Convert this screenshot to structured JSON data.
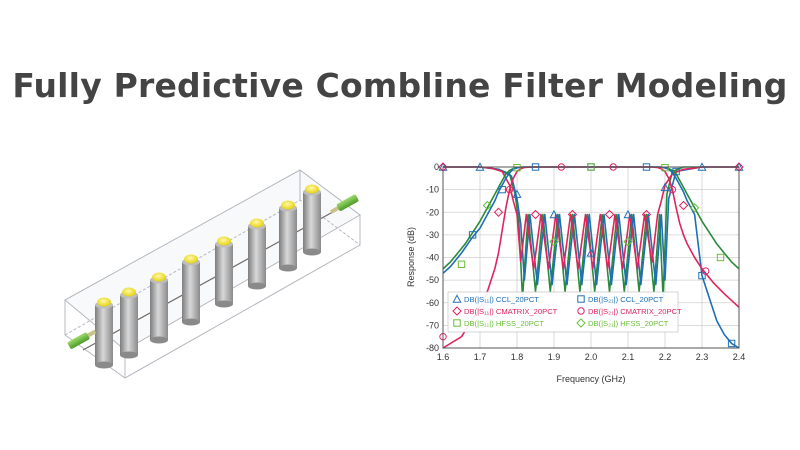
{
  "header": {
    "title": "Fully Predictive Combline Filter Modeling"
  },
  "illustration": {
    "icon": "combline-filter-3d-model-icon"
  },
  "chart_data": {
    "type": "line",
    "xlabel": "Frequency (GHz)",
    "ylabel": "Response (dB)",
    "xlim": [
      1.6,
      2.4
    ],
    "ylim": [
      -80,
      0
    ],
    "x_ticks": [
      1.6,
      1.7,
      1.8,
      1.9,
      2.0,
      2.1,
      2.2,
      2.3,
      2.4
    ],
    "x_tick_labels": [
      "1.6",
      "1.7",
      "1.8",
      "1.9",
      "2.0",
      "2.1",
      "2.2",
      "2.3",
      "2.4"
    ],
    "y_ticks": [
      0,
      -10,
      -20,
      -30,
      -40,
      -50,
      -60,
      -70,
      -80
    ],
    "y_tick_labels": [
      "0",
      "-10",
      "-20",
      "-30",
      "-40",
      "-50",
      "-60",
      "-70",
      "-80"
    ],
    "grid": true,
    "legend_position": "bottom-inside",
    "legend": [
      {
        "text": "DB(|S₁₁|) CCL_20PCT",
        "marker": "triangle",
        "color": "#1f6fb5"
      },
      {
        "text": "DB(|S₂₁|) CCL_20PCT",
        "marker": "square",
        "color": "#1f6fb5"
      },
      {
        "text": "DB(|S₁₁|) CMATRIX_20PCT",
        "marker": "diamond",
        "color": "#e0245e"
      },
      {
        "text": "DB(|S₂₁|) CMATRIX_20PCT",
        "marker": "circle",
        "color": "#e0245e"
      },
      {
        "text": "DB(|S₁₁|) HFSS_20PCT",
        "marker": "square",
        "color": "#6abf3a"
      },
      {
        "text": "DB(|S₂₁|) HFSS_20PCT",
        "marker": "diamond",
        "color": "#6abf3a"
      }
    ],
    "series": [
      {
        "color": "#2a8a3a",
        "kind": "reflection",
        "x": [
          1.6,
          1.65,
          1.7,
          1.75,
          1.78,
          1.795,
          1.805,
          1.815,
          1.83,
          1.85,
          1.87,
          1.89,
          1.91,
          1.93,
          1.95,
          1.97,
          1.99,
          2.01,
          2.03,
          2.05,
          2.07,
          2.09,
          2.11,
          2.13,
          2.15,
          2.17,
          2.185,
          2.195,
          2.205,
          2.22,
          2.25,
          2.3,
          2.35,
          2.4
        ],
        "y": [
          0,
          0,
          0,
          -1,
          -3,
          -12,
          -24,
          -58,
          -21,
          -55,
          -21,
          -55,
          -21,
          -55,
          -21,
          -55,
          -21,
          -55,
          -21,
          -55,
          -21,
          -55,
          -21,
          -55,
          -21,
          -55,
          -21,
          -58,
          -12,
          -2,
          0,
          0,
          0,
          0
        ]
      },
      {
        "color": "#1f6fb5",
        "kind": "reflection",
        "x": [
          1.6,
          1.65,
          1.7,
          1.75,
          1.785,
          1.8,
          1.81,
          1.82,
          1.835,
          1.855,
          1.875,
          1.895,
          1.915,
          1.935,
          1.955,
          1.975,
          1.995,
          2.015,
          2.035,
          2.055,
          2.075,
          2.095,
          2.115,
          2.135,
          2.155,
          2.175,
          2.19,
          2.2,
          2.21,
          2.23,
          2.3,
          2.4
        ],
        "y": [
          0,
          0,
          0,
          -1,
          -4,
          -14,
          -25,
          -50,
          -21,
          -52,
          -21,
          -52,
          -21,
          -52,
          -21,
          -52,
          -21,
          -52,
          -21,
          -52,
          -21,
          -52,
          -21,
          -52,
          -21,
          -52,
          -21,
          -50,
          -14,
          -2,
          0,
          0
        ]
      },
      {
        "color": "#e0245e",
        "kind": "reflection",
        "x": [
          1.6,
          1.65,
          1.7,
          1.73,
          1.76,
          1.78,
          1.79,
          1.8,
          1.81,
          1.825,
          1.845,
          1.865,
          1.885,
          1.905,
          1.925,
          1.945,
          1.965,
          1.985,
          2.005,
          2.025,
          2.045,
          2.065,
          2.085,
          2.105,
          2.125,
          2.145,
          2.165,
          2.18,
          2.19,
          2.2,
          2.22,
          2.25,
          2.28,
          2.3,
          2.35,
          2.4
        ],
        "y": [
          0,
          0,
          0,
          -0.5,
          -2,
          -8,
          -15,
          -21,
          -42,
          -21,
          -45,
          -21,
          -45,
          -21,
          -45,
          -21,
          -45,
          -21,
          -45,
          -21,
          -45,
          -21,
          -45,
          -21,
          -45,
          -21,
          -42,
          -21,
          -15,
          -8,
          -3,
          -1,
          -0.5,
          0,
          0,
          0
        ]
      },
      {
        "color": "#2a8a3a",
        "kind": "transmission",
        "x": [
          1.6,
          1.62,
          1.64,
          1.66,
          1.68,
          1.7,
          1.72,
          1.74,
          1.75,
          1.76,
          1.77,
          1.78,
          1.79,
          1.8,
          1.81,
          1.82,
          1.84,
          2.16,
          2.18,
          2.19,
          2.2,
          2.21,
          2.22,
          2.23,
          2.24,
          2.25,
          2.26,
          2.28,
          2.3,
          2.32,
          2.34,
          2.36,
          2.38,
          2.4
        ],
        "y": [
          -45,
          -42,
          -38,
          -34,
          -29,
          -24,
          -18,
          -12,
          -9,
          -6,
          -3,
          -1.5,
          -0.7,
          -0.3,
          -0.1,
          0,
          0,
          0,
          0,
          -0.1,
          -0.3,
          -0.7,
          -1.5,
          -3,
          -6,
          -9,
          -12,
          -18,
          -24,
          -29,
          -34,
          -38,
          -42,
          -45
        ]
      },
      {
        "color": "#1f6fb5",
        "kind": "transmission",
        "x": [
          1.6,
          1.62,
          1.65,
          1.68,
          1.7,
          1.72,
          1.74,
          1.75,
          1.76,
          1.77,
          1.78,
          1.79,
          1.8,
          1.81,
          1.83,
          2.17,
          2.19,
          2.2,
          2.21,
          2.22,
          2.23,
          2.24,
          2.25,
          2.26,
          2.28,
          2.3,
          2.32,
          2.34,
          2.36,
          2.38,
          2.4
        ],
        "y": [
          -47,
          -44,
          -38,
          -31,
          -27,
          -21,
          -15,
          -11,
          -8,
          -5,
          -2.5,
          -1,
          -0.4,
          -0.1,
          0,
          0,
          0,
          -0.4,
          -1,
          -2.5,
          -5,
          -8,
          -11,
          -15,
          -21,
          -48,
          -58,
          -68,
          -74,
          -78,
          -80
        ]
      },
      {
        "color": "#e0245e",
        "kind": "transmission",
        "x": [
          1.6,
          1.65,
          1.7,
          1.72,
          1.74,
          1.75,
          1.76,
          1.77,
          1.78,
          1.79,
          1.8,
          1.81,
          1.82,
          1.84,
          2.16,
          2.18,
          2.19,
          2.2,
          2.21,
          2.22,
          2.23,
          2.24,
          2.25,
          2.26,
          2.28,
          2.3,
          2.33,
          2.36,
          2.4
        ],
        "y": [
          -80,
          -75,
          -62,
          -55,
          -45,
          -38,
          -28,
          -18,
          -10,
          -5,
          -2,
          -0.8,
          -0.2,
          0,
          0,
          -0.2,
          -0.8,
          -2,
          -5,
          -10,
          -18,
          -25,
          -30,
          -34,
          -40,
          -45,
          -51,
          -56,
          -62
        ]
      }
    ],
    "markers": [
      {
        "shape": "triangle",
        "color": "#1f6fb5",
        "points": [
          [
            1.6,
            0
          ],
          [
            1.7,
            0
          ],
          [
            1.8,
            -12
          ],
          [
            1.9,
            -21
          ],
          [
            2.0,
            -38
          ],
          [
            2.1,
            -21
          ],
          [
            2.2,
            -9
          ],
          [
            2.3,
            0
          ],
          [
            2.4,
            0
          ]
        ]
      },
      {
        "shape": "square",
        "color": "#1f6fb5",
        "points": [
          [
            1.68,
            -30
          ],
          [
            1.76,
            -10
          ],
          [
            1.85,
            0
          ],
          [
            2.0,
            0
          ],
          [
            2.15,
            0
          ],
          [
            2.23,
            -2
          ],
          [
            2.3,
            -48
          ],
          [
            2.38,
            -78
          ]
        ]
      },
      {
        "shape": "diamond",
        "color": "#e0245e",
        "points": [
          [
            1.6,
            0
          ],
          [
            1.75,
            -20
          ],
          [
            1.85,
            -21
          ],
          [
            1.95,
            -21
          ],
          [
            2.05,
            -21
          ],
          [
            2.15,
            -21
          ],
          [
            2.25,
            -17
          ],
          [
            2.4,
            0
          ]
        ]
      },
      {
        "shape": "circle",
        "color": "#e0245e",
        "points": [
          [
            1.6,
            -75
          ],
          [
            1.7,
            -62
          ],
          [
            1.78,
            -10
          ],
          [
            1.92,
            0
          ],
          [
            2.06,
            0
          ],
          [
            2.22,
            -10
          ],
          [
            2.31,
            -46
          ]
        ]
      },
      {
        "shape": "square",
        "color": "#6abf3a",
        "points": [
          [
            1.65,
            -43
          ],
          [
            1.8,
            -0.3
          ],
          [
            2.0,
            0
          ],
          [
            2.2,
            -0.3
          ],
          [
            2.35,
            -40
          ]
        ]
      },
      {
        "shape": "diamond",
        "color": "#6abf3a",
        "points": [
          [
            1.72,
            -17
          ],
          [
            1.9,
            -33
          ],
          [
            2.1,
            -33
          ],
          [
            2.28,
            -18
          ]
        ]
      }
    ]
  }
}
